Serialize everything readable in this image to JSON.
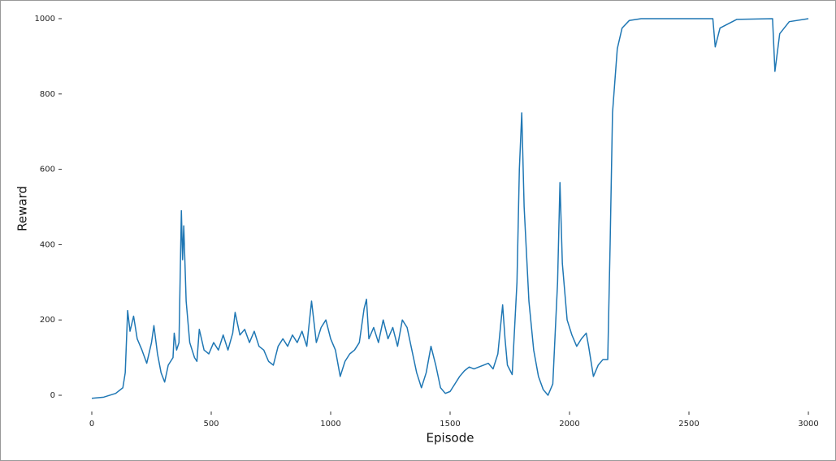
{
  "chart_data": {
    "type": "line",
    "x_label": "Episode",
    "y_label": "Reward",
    "color": "#1f77b4",
    "x": [
      0,
      50,
      100,
      130,
      140,
      150,
      160,
      175,
      190,
      210,
      230,
      250,
      260,
      275,
      290,
      305,
      320,
      340,
      345,
      355,
      365,
      375,
      380,
      385,
      395,
      410,
      430,
      440,
      450,
      470,
      490,
      510,
      530,
      550,
      570,
      590,
      600,
      620,
      640,
      660,
      680,
      700,
      720,
      740,
      760,
      780,
      800,
      820,
      840,
      860,
      880,
      900,
      920,
      940,
      960,
      980,
      1000,
      1020,
      1040,
      1060,
      1080,
      1100,
      1120,
      1140,
      1150,
      1160,
      1180,
      1200,
      1220,
      1240,
      1260,
      1280,
      1300,
      1320,
      1340,
      1360,
      1380,
      1400,
      1420,
      1440,
      1460,
      1480,
      1500,
      1520,
      1540,
      1560,
      1580,
      1600,
      1620,
      1640,
      1660,
      1680,
      1700,
      1720,
      1730,
      1740,
      1760,
      1780,
      1790,
      1800,
      1810,
      1830,
      1850,
      1870,
      1890,
      1910,
      1930,
      1950,
      1960,
      1970,
      1990,
      2010,
      2030,
      2050,
      2070,
      2080,
      2100,
      2120,
      2140,
      2160,
      2170,
      2180,
      2200,
      2220,
      2250,
      2300,
      2600,
      2610,
      2630,
      2700,
      2850,
      2860,
      2880,
      2920,
      3000
    ],
    "values": [
      -8,
      -5,
      5,
      20,
      60,
      225,
      170,
      210,
      150,
      120,
      85,
      140,
      185,
      110,
      60,
      35,
      80,
      100,
      165,
      120,
      140,
      490,
      360,
      450,
      250,
      140,
      100,
      90,
      175,
      120,
      110,
      140,
      120,
      160,
      120,
      165,
      220,
      160,
      175,
      140,
      170,
      130,
      120,
      90,
      80,
      130,
      150,
      130,
      160,
      140,
      170,
      130,
      250,
      140,
      180,
      200,
      150,
      120,
      50,
      90,
      110,
      120,
      140,
      230,
      255,
      150,
      180,
      140,
      200,
      150,
      180,
      130,
      200,
      180,
      120,
      60,
      20,
      60,
      130,
      80,
      20,
      5,
      10,
      30,
      50,
      65,
      75,
      70,
      75,
      80,
      85,
      70,
      110,
      240,
      150,
      80,
      55,
      300,
      600,
      750,
      500,
      250,
      120,
      50,
      15,
      0,
      30,
      300,
      565,
      350,
      200,
      160,
      130,
      150,
      165,
      130,
      50,
      80,
      95,
      95,
      400,
      750,
      920,
      975,
      995,
      1000,
      1000,
      925,
      975,
      998,
      1000,
      860,
      960,
      992,
      1000
    ],
    "xlim": [
      0,
      3000
    ],
    "ylim": [
      -20,
      1020
    ],
    "xticks": [
      0,
      500,
      1000,
      1500,
      2000,
      2500,
      3000
    ],
    "yticks": [
      0,
      200,
      400,
      600,
      800,
      1000
    ]
  }
}
